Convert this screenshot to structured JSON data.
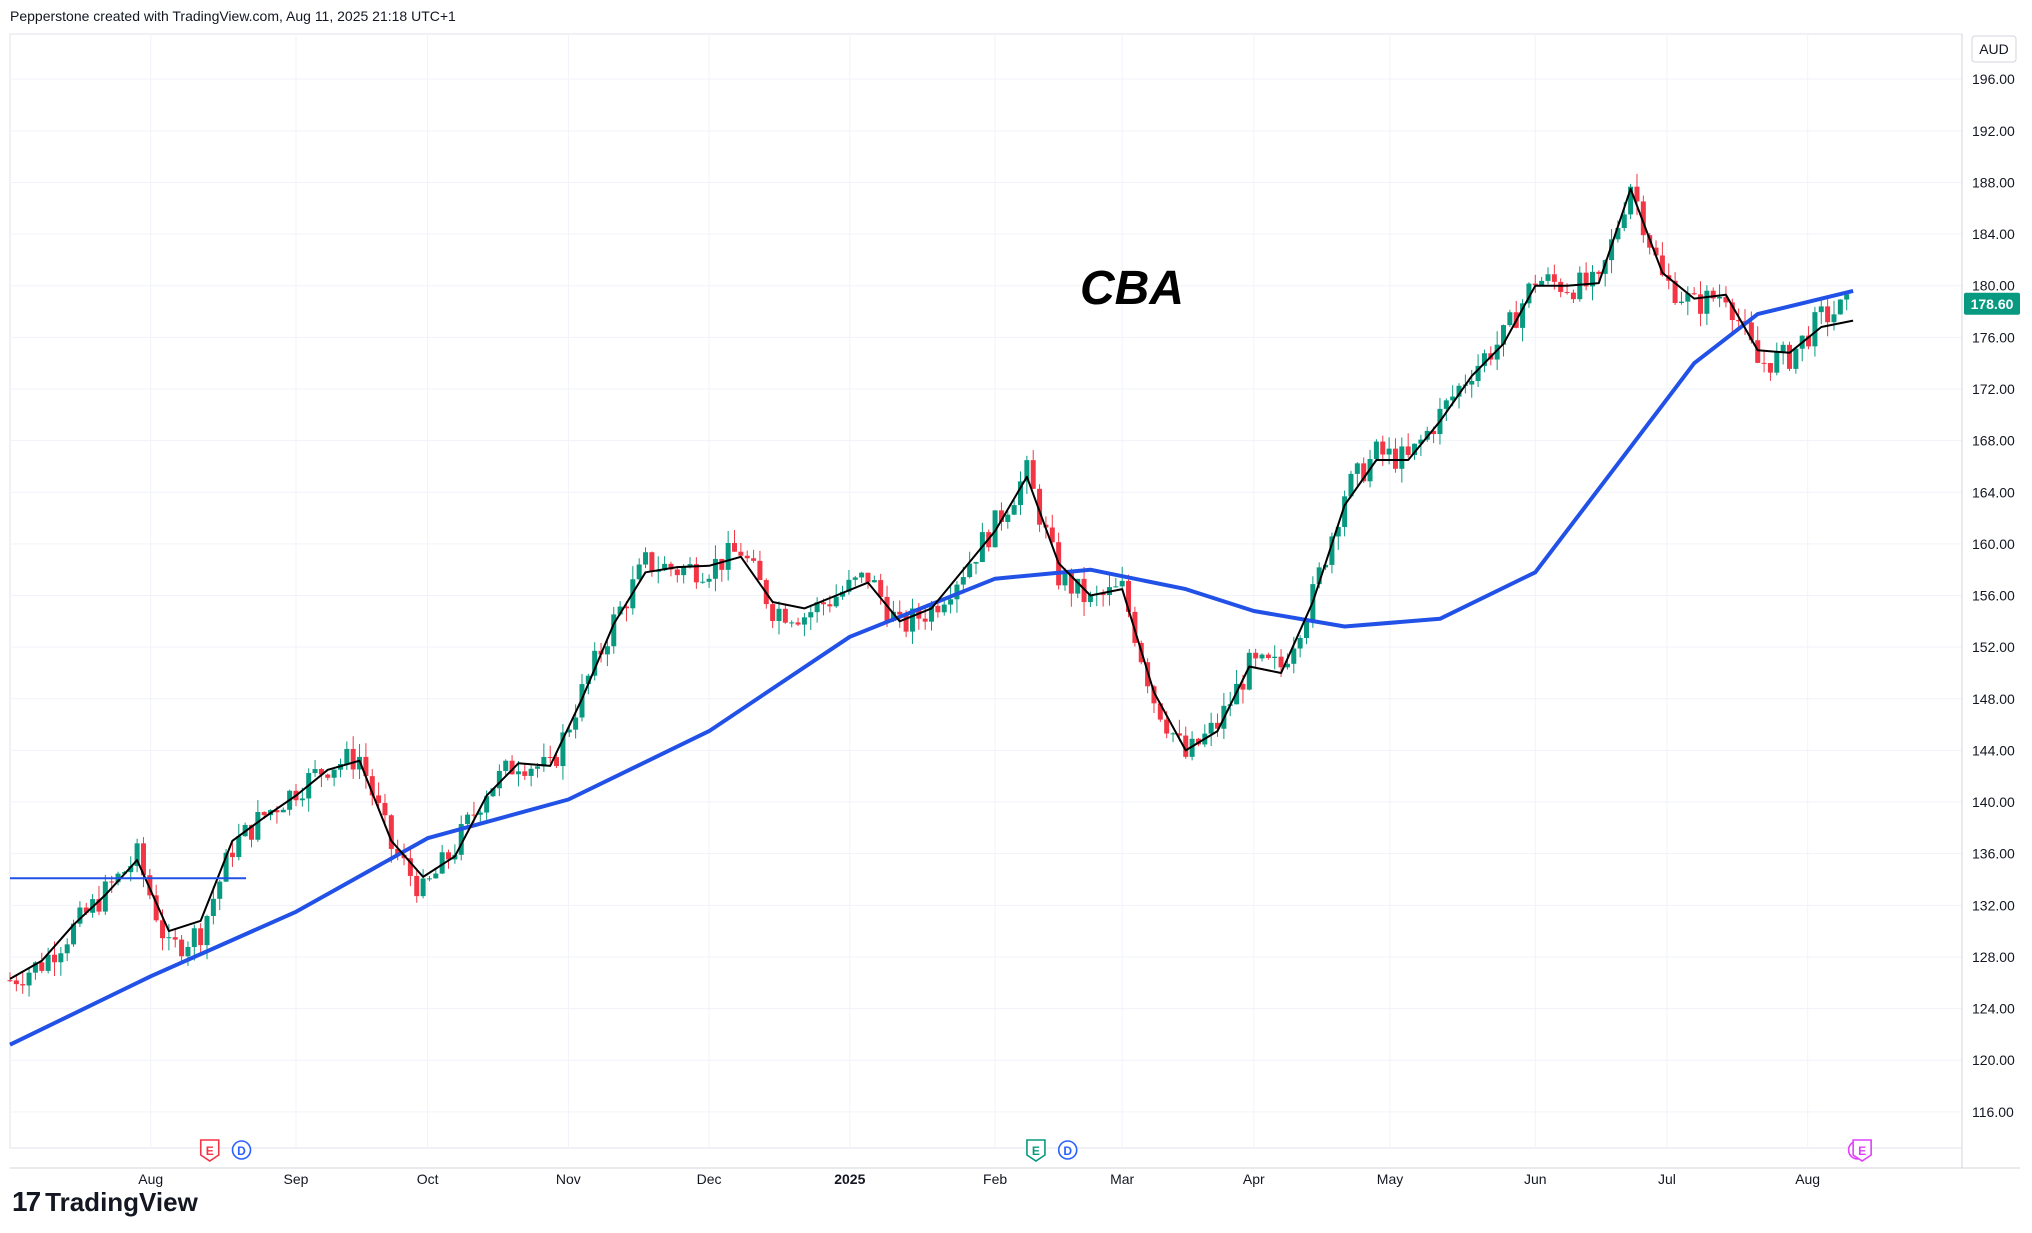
{
  "header": {
    "text": "Pepperstone created with TradingView.com, Aug 11, 2025 21:18 UTC+1"
  },
  "brand": {
    "mark": "17",
    "name": "TradingView"
  },
  "currency": "AUD",
  "price_label": "178.60",
  "colors": {
    "up": "#089981",
    "down": "#f23645",
    "ma_fast": "#000000",
    "ma_slow": "#2151e6",
    "hline": "#2151e6",
    "grid": "#f0f3fa",
    "price_tag": "#089981"
  },
  "event_markers": [
    {
      "icon": "earnings-icon",
      "letter": "E",
      "date": "2024-08-14",
      "color": "#f23645"
    },
    {
      "icon": "dividend-icon",
      "letter": "D",
      "date": "2024-08-21",
      "color": "#2962ff"
    },
    {
      "icon": "earnings-icon",
      "letter": "E",
      "date": "2025-02-12",
      "color": "#089981"
    },
    {
      "icon": "dividend-icon",
      "letter": "D",
      "date": "2025-02-19",
      "color": "#2962ff"
    },
    {
      "icon": "split-icon",
      "letter": "",
      "date": "2025-08-12",
      "color": "#e040fb"
    },
    {
      "icon": "earnings-icon",
      "letter": "E",
      "date": "2025-08-13",
      "color": "#e040fb"
    }
  ],
  "chart_data": {
    "type": "candlestick",
    "title": "CBA",
    "y_axis": {
      "ticks": [
        116,
        120,
        124,
        128,
        132,
        136,
        140,
        144,
        148,
        152,
        156,
        160,
        164,
        168,
        172,
        176,
        180,
        184,
        188,
        192,
        196
      ],
      "ylim": [
        113.2,
        199.5
      ],
      "side": "right"
    },
    "x_axis": {
      "ticks": [
        {
          "date": "2024-08-01",
          "label": "Aug"
        },
        {
          "date": "2024-09-02",
          "label": "Sep"
        },
        {
          "date": "2024-10-01",
          "label": "Oct"
        },
        {
          "date": "2024-11-01",
          "label": "Nov"
        },
        {
          "date": "2024-12-02",
          "label": "Dec"
        },
        {
          "date": "2025-01-02",
          "label": "2025"
        },
        {
          "date": "2025-02-03",
          "label": "Feb"
        },
        {
          "date": "2025-03-03",
          "label": "Mar"
        },
        {
          "date": "2025-04-01",
          "label": "Apr"
        },
        {
          "date": "2025-05-01",
          "label": "May"
        },
        {
          "date": "2025-06-02",
          "label": "Jun"
        },
        {
          "date": "2025-07-01",
          "label": "Jul"
        },
        {
          "date": "2025-08-01",
          "label": "Aug"
        }
      ],
      "xlim": [
        "2024-07-01",
        "2025-09-04"
      ]
    },
    "close_series": [
      [
        "2024-07-01",
        126.2
      ],
      [
        "2024-07-08",
        127.5
      ],
      [
        "2024-07-15",
        130.2
      ],
      [
        "2024-07-22",
        133.0
      ],
      [
        "2024-07-29",
        135.8
      ],
      [
        "2024-08-05",
        128.5
      ],
      [
        "2024-08-12",
        130.0
      ],
      [
        "2024-08-19",
        136.5
      ],
      [
        "2024-08-26",
        139.0
      ],
      [
        "2024-09-02",
        141.0
      ],
      [
        "2024-09-09",
        142.8
      ],
      [
        "2024-09-16",
        143.5
      ],
      [
        "2024-09-23",
        136.5
      ],
      [
        "2024-09-30",
        133.0
      ],
      [
        "2024-10-07",
        136.5
      ],
      [
        "2024-10-14",
        141.0
      ],
      [
        "2024-10-21",
        143.2
      ],
      [
        "2024-10-28",
        142.5
      ],
      [
        "2024-11-04",
        148.5
      ],
      [
        "2024-11-11",
        154.0
      ],
      [
        "2024-11-18",
        158.5
      ],
      [
        "2024-11-25",
        158.0
      ],
      [
        "2024-12-02",
        158.2
      ],
      [
        "2024-12-09",
        159.5
      ],
      [
        "2024-12-16",
        155.0
      ],
      [
        "2024-12-23",
        154.5
      ],
      [
        "2024-12-30",
        156.0
      ],
      [
        "2025-01-06",
        157.5
      ],
      [
        "2025-01-13",
        153.5
      ],
      [
        "2025-01-20",
        155.0
      ],
      [
        "2025-01-27",
        158.0
      ],
      [
        "2025-02-03",
        161.5
      ],
      [
        "2025-02-10",
        165.5
      ],
      [
        "2025-02-17",
        157.5
      ],
      [
        "2025-02-24",
        155.5
      ],
      [
        "2025-03-03",
        156.5
      ],
      [
        "2025-03-10",
        148.0
      ],
      [
        "2025-03-17",
        143.5
      ],
      [
        "2025-03-24",
        146.0
      ],
      [
        "2025-03-31",
        150.5
      ],
      [
        "2025-04-07",
        150.5
      ],
      [
        "2025-04-14",
        156.0
      ],
      [
        "2025-04-21",
        164.0
      ],
      [
        "2025-04-28",
        167.0
      ],
      [
        "2025-05-05",
        166.5
      ],
      [
        "2025-05-12",
        170.0
      ],
      [
        "2025-05-19",
        173.5
      ],
      [
        "2025-05-26",
        176.0
      ],
      [
        "2025-06-02",
        180.5
      ],
      [
        "2025-06-09",
        180.0
      ],
      [
        "2025-06-16",
        180.0
      ],
      [
        "2025-06-23",
        188.0
      ],
      [
        "2025-06-30",
        180.5
      ],
      [
        "2025-07-07",
        178.5
      ],
      [
        "2025-07-14",
        179.5
      ],
      [
        "2025-07-21",
        174.0
      ],
      [
        "2025-07-28",
        174.5
      ],
      [
        "2025-08-04",
        177.5
      ],
      [
        "2025-08-11",
        178.6
      ]
    ],
    "ma_fast": [
      [
        "2024-07-01",
        126.3
      ],
      [
        "2024-07-08",
        127.7
      ],
      [
        "2024-07-15",
        130.5
      ],
      [
        "2024-07-22",
        132.8
      ],
      [
        "2024-07-29",
        135.5
      ],
      [
        "2024-08-05",
        130.0
      ],
      [
        "2024-08-12",
        130.8
      ],
      [
        "2024-08-19",
        137.0
      ],
      [
        "2024-08-26",
        138.8
      ],
      [
        "2024-09-02",
        140.5
      ],
      [
        "2024-09-09",
        142.5
      ],
      [
        "2024-09-16",
        143.2
      ],
      [
        "2024-09-23",
        137.0
      ],
      [
        "2024-09-30",
        134.2
      ],
      [
        "2024-10-07",
        135.8
      ],
      [
        "2024-10-14",
        140.5
      ],
      [
        "2024-10-21",
        143.0
      ],
      [
        "2024-10-28",
        142.8
      ],
      [
        "2024-11-04",
        148.0
      ],
      [
        "2024-11-11",
        153.8
      ],
      [
        "2024-11-18",
        157.8
      ],
      [
        "2024-11-25",
        158.2
      ],
      [
        "2024-12-02",
        158.3
      ],
      [
        "2024-12-09",
        159.0
      ],
      [
        "2024-12-16",
        155.5
      ],
      [
        "2024-12-23",
        155.0
      ],
      [
        "2024-12-30",
        156.0
      ],
      [
        "2025-01-06",
        157.0
      ],
      [
        "2025-01-13",
        154.0
      ],
      [
        "2025-01-20",
        155.0
      ],
      [
        "2025-01-27",
        158.0
      ],
      [
        "2025-02-03",
        161.0
      ],
      [
        "2025-02-10",
        165.2
      ],
      [
        "2025-02-17",
        158.5
      ],
      [
        "2025-02-24",
        156.0
      ],
      [
        "2025-03-03",
        156.5
      ],
      [
        "2025-03-10",
        148.5
      ],
      [
        "2025-03-17",
        144.0
      ],
      [
        "2025-03-24",
        145.5
      ],
      [
        "2025-03-31",
        150.5
      ],
      [
        "2025-04-07",
        150.0
      ],
      [
        "2025-04-14",
        155.5
      ],
      [
        "2025-04-21",
        163.0
      ],
      [
        "2025-04-28",
        166.5
      ],
      [
        "2025-05-05",
        166.5
      ],
      [
        "2025-05-12",
        169.5
      ],
      [
        "2025-05-19",
        173.0
      ],
      [
        "2025-05-26",
        175.5
      ],
      [
        "2025-06-02",
        180.0
      ],
      [
        "2025-06-09",
        180.0
      ],
      [
        "2025-06-16",
        180.2
      ],
      [
        "2025-06-23",
        187.5
      ],
      [
        "2025-06-30",
        181.0
      ],
      [
        "2025-07-07",
        179.0
      ],
      [
        "2025-07-14",
        179.3
      ],
      [
        "2025-07-21",
        175.0
      ],
      [
        "2025-07-28",
        174.8
      ],
      [
        "2025-08-04",
        176.8
      ],
      [
        "2025-08-11",
        177.3
      ]
    ],
    "ma_slow": [
      [
        "2024-07-01",
        121.2
      ],
      [
        "2024-08-01",
        126.5
      ],
      [
        "2024-09-02",
        131.5
      ],
      [
        "2024-10-01",
        137.2
      ],
      [
        "2024-11-01",
        140.2
      ],
      [
        "2024-12-02",
        145.5
      ],
      [
        "2025-01-02",
        152.8
      ],
      [
        "2025-02-03",
        157.3
      ],
      [
        "2025-02-24",
        158.0
      ],
      [
        "2025-03-17",
        156.5
      ],
      [
        "2025-04-01",
        154.8
      ],
      [
        "2025-04-21",
        153.6
      ],
      [
        "2025-05-12",
        154.2
      ],
      [
        "2025-06-02",
        157.8
      ],
      [
        "2025-06-23",
        167.5
      ],
      [
        "2025-07-07",
        174.0
      ],
      [
        "2025-07-21",
        177.8
      ],
      [
        "2025-08-11",
        179.6
      ]
    ],
    "hline": {
      "value": 134.1,
      "from": "2024-07-01",
      "to": "2024-08-22"
    },
    "last_price": 178.6
  }
}
